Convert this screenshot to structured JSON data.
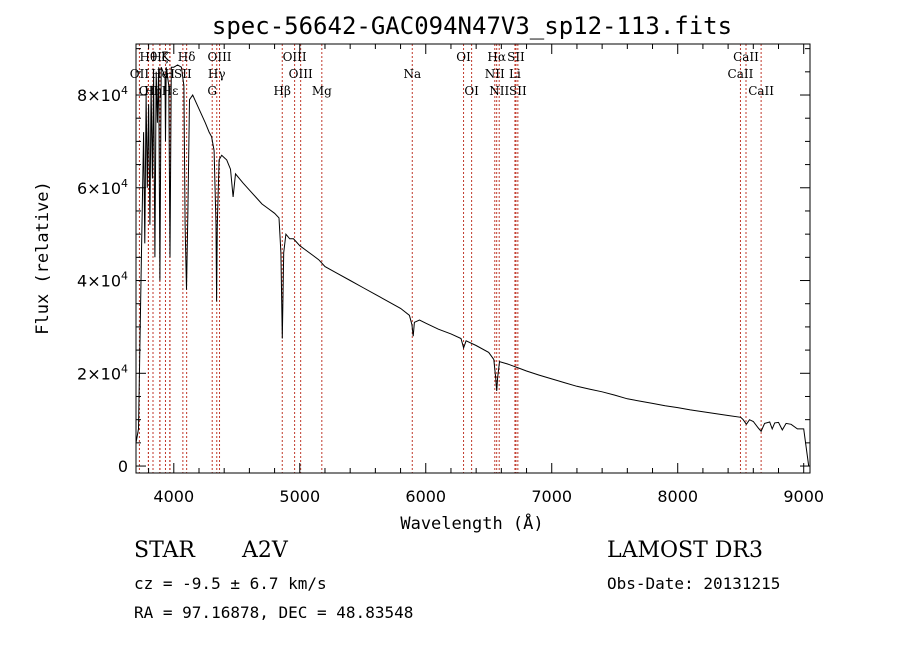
{
  "chart_data": {
    "type": "line",
    "title": "spec-56642-GAC094N47V3_sp12-113.fits",
    "xlabel": "Wavelength (Å)",
    "ylabel": "Flux (relative)",
    "xlim": [
      3700,
      9050
    ],
    "ylim": [
      -1500,
      91000
    ],
    "xticks": [
      4000,
      5000,
      6000,
      7000,
      8000,
      9000
    ],
    "xtick_labels": [
      "4000",
      "5000",
      "6000",
      "7000",
      "8000",
      "9000"
    ],
    "yticks": [
      {
        "value": 0,
        "mantissa": "0",
        "exp": ""
      },
      {
        "value": 20000,
        "mantissa": "2×10",
        "exp": "4"
      },
      {
        "value": 40000,
        "mantissa": "4×10",
        "exp": "4"
      },
      {
        "value": 60000,
        "mantissa": "6×10",
        "exp": "4"
      },
      {
        "value": 80000,
        "mantissa": "8×10",
        "exp": "4"
      }
    ],
    "series": [
      {
        "name": "spectrum",
        "color": "#000000",
        "points": [
          [
            3700,
            5000
          ],
          [
            3720,
            8000
          ],
          [
            3740,
            40000
          ],
          [
            3760,
            72000
          ],
          [
            3770,
            48000
          ],
          [
            3780,
            80000
          ],
          [
            3790,
            60000
          ],
          [
            3800,
            78000
          ],
          [
            3810,
            52000
          ],
          [
            3820,
            82000
          ],
          [
            3830,
            62000
          ],
          [
            3840,
            84000
          ],
          [
            3850,
            45000
          ],
          [
            3860,
            85000
          ],
          [
            3870,
            74000
          ],
          [
            3880,
            86000
          ],
          [
            3890,
            40000
          ],
          [
            3900,
            86000
          ],
          [
            3930,
            84000
          ],
          [
            3934,
            70000
          ],
          [
            3940,
            86000
          ],
          [
            3960,
            82000
          ],
          [
            3970,
            45000
          ],
          [
            3980,
            86000
          ],
          [
            4000,
            86000
          ],
          [
            4030,
            86500
          ],
          [
            4060,
            86000
          ],
          [
            4080,
            82000
          ],
          [
            4090,
            52000
          ],
          [
            4101,
            38000
          ],
          [
            4112,
            55000
          ],
          [
            4125,
            79000
          ],
          [
            4150,
            80000
          ],
          [
            4200,
            77000
          ],
          [
            4250,
            74000
          ],
          [
            4280,
            72000
          ],
          [
            4300,
            71000
          ],
          [
            4320,
            68000
          ],
          [
            4335,
            52000
          ],
          [
            4340,
            35500
          ],
          [
            4345,
            52000
          ],
          [
            4360,
            66000
          ],
          [
            4380,
            67000
          ],
          [
            4400,
            66500
          ],
          [
            4420,
            66000
          ],
          [
            4450,
            64000
          ],
          [
            4471,
            58000
          ],
          [
            4490,
            63000
          ],
          [
            4550,
            61000
          ],
          [
            4600,
            59500
          ],
          [
            4650,
            58000
          ],
          [
            4700,
            56500
          ],
          [
            4750,
            55500
          ],
          [
            4800,
            54500
          ],
          [
            4835,
            53500
          ],
          [
            4850,
            46000
          ],
          [
            4861,
            27500
          ],
          [
            4872,
            46000
          ],
          [
            4890,
            50000
          ],
          [
            4920,
            49000
          ],
          [
            4950,
            49000
          ],
          [
            5000,
            47500
          ],
          [
            5050,
            46500
          ],
          [
            5100,
            45500
          ],
          [
            5150,
            44500
          ],
          [
            5200,
            43000
          ],
          [
            5300,
            41500
          ],
          [
            5400,
            40000
          ],
          [
            5500,
            38500
          ],
          [
            5600,
            37000
          ],
          [
            5700,
            35500
          ],
          [
            5800,
            34000
          ],
          [
            5870,
            32500
          ],
          [
            5890,
            30500
          ],
          [
            5900,
            28000
          ],
          [
            5910,
            31000
          ],
          [
            5950,
            31500
          ],
          [
            6000,
            30800
          ],
          [
            6100,
            29500
          ],
          [
            6200,
            28500
          ],
          [
            6280,
            27500
          ],
          [
            6300,
            25500
          ],
          [
            6320,
            27000
          ],
          [
            6400,
            26000
          ],
          [
            6500,
            24500
          ],
          [
            6540,
            23000
          ],
          [
            6555,
            19000
          ],
          [
            6563,
            16200
          ],
          [
            6570,
            19000
          ],
          [
            6585,
            22500
          ],
          [
            6650,
            22000
          ],
          [
            6700,
            21500
          ],
          [
            6750,
            21000
          ],
          [
            6800,
            20500
          ],
          [
            6900,
            19600
          ],
          [
            7000,
            18800
          ],
          [
            7100,
            18000
          ],
          [
            7200,
            17200
          ],
          [
            7300,
            16600
          ],
          [
            7400,
            16000
          ],
          [
            7500,
            15300
          ],
          [
            7600,
            14500
          ],
          [
            7700,
            14000
          ],
          [
            7800,
            13500
          ],
          [
            7900,
            13000
          ],
          [
            8000,
            12600
          ],
          [
            8100,
            12100
          ],
          [
            8200,
            11700
          ],
          [
            8300,
            11300
          ],
          [
            8400,
            10900
          ],
          [
            8500,
            10500
          ],
          [
            8520,
            10000
          ],
          [
            8545,
            9000
          ],
          [
            8570,
            10000
          ],
          [
            8600,
            9600
          ],
          [
            8640,
            8200
          ],
          [
            8662,
            7500
          ],
          [
            8690,
            9200
          ],
          [
            8730,
            9500
          ],
          [
            8750,
            8000
          ],
          [
            8770,
            9300
          ],
          [
            8800,
            9400
          ],
          [
            8830,
            7800
          ],
          [
            8860,
            9200
          ],
          [
            8900,
            9000
          ],
          [
            8950,
            8000
          ],
          [
            9000,
            8000
          ],
          [
            9020,
            4000
          ],
          [
            9040,
            0
          ]
        ]
      }
    ],
    "spectral_lines": [
      {
        "label": "OII",
        "wavelength": 3727,
        "row": 2
      },
      {
        "label": "Hθ",
        "wavelength": 3798,
        "row": 1
      },
      {
        "label": "OII",
        "wavelength": 3799,
        "row": 3
      },
      {
        "label": "Hη",
        "wavelength": 3835,
        "row": 3
      },
      {
        "label": "Hζ",
        "wavelength": 3889,
        "row": 1
      },
      {
        "label": "He",
        "wavelength": 3890,
        "row": 2
      },
      {
        "label": "K",
        "wavelength": 3934,
        "row": 1
      },
      {
        "label": "H",
        "wavelength": 3968,
        "row": 2
      },
      {
        "label": "Hε",
        "wavelength": 3970,
        "row": 3
      },
      {
        "label": "Hδ",
        "wavelength": 4102,
        "row": 1
      },
      {
        "label": "SII",
        "wavelength": 4072,
        "row": 2
      },
      {
        "label": "OIII",
        "wavelength": 4363,
        "row": 1
      },
      {
        "label": "Hγ",
        "wavelength": 4341,
        "row": 2
      },
      {
        "label": "G",
        "wavelength": 4305,
        "row": 3
      },
      {
        "label": "Hβ",
        "wavelength": 4861,
        "row": 3
      },
      {
        "label": "OIII",
        "wavelength": 4959,
        "row": 1
      },
      {
        "label": "OIII",
        "wavelength": 5007,
        "row": 2
      },
      {
        "label": "Mg",
        "wavelength": 5175,
        "row": 3
      },
      {
        "label": "Na",
        "wavelength": 5893,
        "row": 2
      },
      {
        "label": "OI",
        "wavelength": 6300,
        "row": 1
      },
      {
        "label": "OI",
        "wavelength": 6364,
        "row": 3
      },
      {
        "label": "Hα",
        "wavelength": 6563,
        "row": 1
      },
      {
        "label": "NII",
        "wavelength": 6548,
        "row": 2
      },
      {
        "label": "NII",
        "wavelength": 6583,
        "row": 3
      },
      {
        "label": "SII",
        "wavelength": 6716,
        "row": 1
      },
      {
        "label": "Li",
        "wavelength": 6708,
        "row": 2
      },
      {
        "label": "SII",
        "wavelength": 6731,
        "row": 3
      },
      {
        "label": "CaII",
        "wavelength": 8542,
        "row": 1
      },
      {
        "label": "CaII",
        "wavelength": 8498,
        "row": 2
      },
      {
        "label": "CaII",
        "wavelength": 8662,
        "row": 3
      }
    ]
  },
  "info": {
    "object_class": "STAR",
    "subclass": "A2V",
    "survey": "LAMOST DR3",
    "redshift": "cz = -9.5 ± 6.7 km/s",
    "obs_date": "Obs-Date: 20131215",
    "coords": "RA =  97.16878, DEC =  48.83548"
  },
  "colors": {
    "spectrum": "#000000",
    "line_marker": "#c0392b",
    "axis": "#000000"
  }
}
